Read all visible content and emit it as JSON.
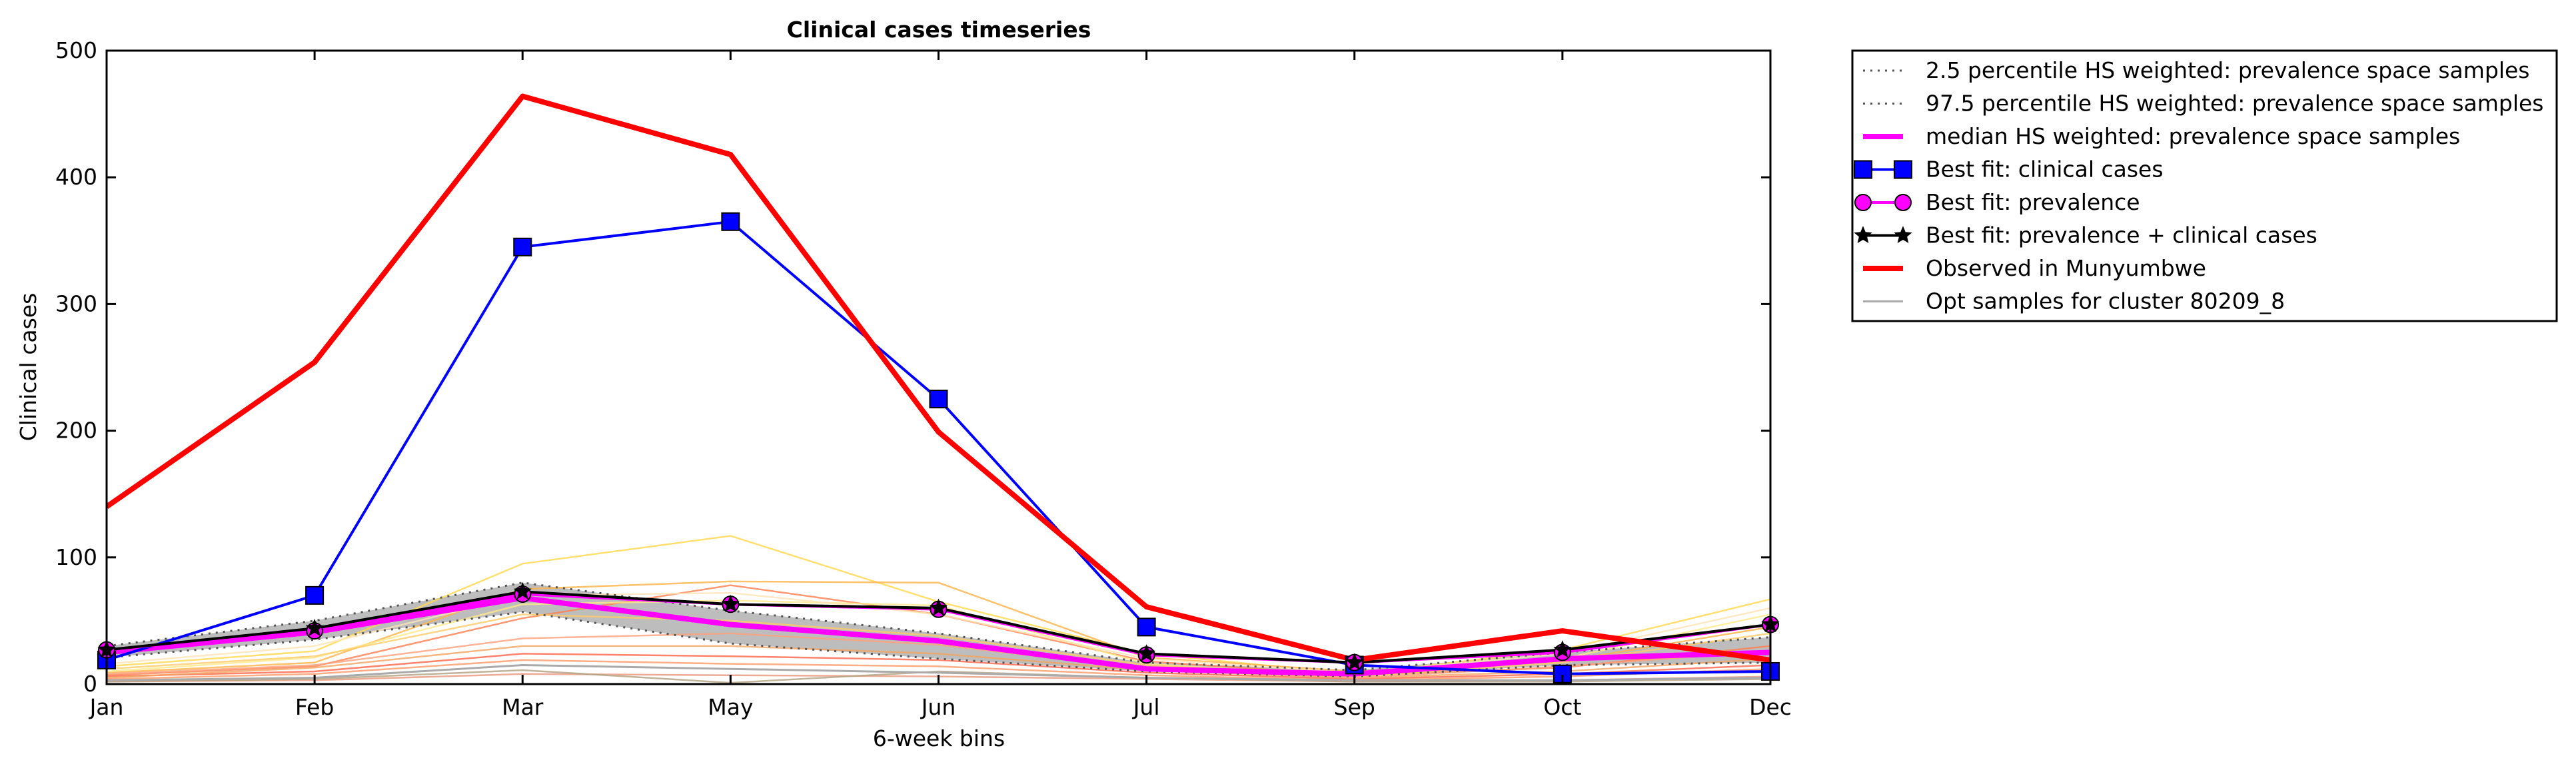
{
  "chart_data": {
    "type": "line",
    "title": "Clinical cases timeseries",
    "xlabel": "6-week bins",
    "ylabel": "Clinical cases",
    "categories": [
      "Jan",
      "Feb",
      "Mar",
      "May",
      "Jun",
      "Jul",
      "Sep",
      "Oct",
      "Dec"
    ],
    "ylim": [
      0,
      500
    ],
    "yticks": [
      0,
      100,
      200,
      300,
      400,
      500
    ],
    "grid": false,
    "legend_position": "outside-right",
    "series": [
      {
        "name": "2.5 percentile HS weighted: prevalence space samples",
        "style": "dotted",
        "color": "#555555",
        "values": [
          21,
          35,
          57,
          32,
          20,
          10,
          6,
          15,
          17
        ]
      },
      {
        "name": "97.5 percentile HS weighted: prevalence space samples",
        "style": "dotted",
        "color": "#555555",
        "values": [
          30,
          50,
          80,
          58,
          40,
          17,
          11,
          25,
          37
        ]
      },
      {
        "name": "median HS weighted: prevalence space samples",
        "style": "solid-thick",
        "color": "#ff00ff",
        "values": [
          25,
          41,
          68,
          47,
          34,
          12,
          8,
          20,
          25
        ]
      },
      {
        "name": "Best fit: clinical cases",
        "style": "line-square",
        "color": "#0000ff",
        "values": [
          19,
          70,
          345,
          365,
          225,
          45,
          15,
          8,
          10
        ]
      },
      {
        "name": "Best fit: prevalence",
        "style": "line-circle",
        "color": "#ff00ff",
        "values": [
          27,
          42,
          71,
          63,
          59,
          23,
          17,
          25,
          47
        ]
      },
      {
        "name": "Best fit: prevalence + clinical cases",
        "style": "line-star",
        "color": "#000000",
        "values": [
          27,
          44,
          73,
          63,
          60,
          24,
          17,
          27,
          47
        ]
      },
      {
        "name": "Observed in Munyumbwe",
        "style": "solid-thick",
        "color": "#ff0000",
        "values": [
          140,
          254,
          464,
          418,
          199,
          61,
          19,
          42,
          19
        ]
      },
      {
        "name": "Opt samples for cluster 80209_8",
        "style": "thin",
        "color": "#aaaaaa",
        "values": [
          3,
          5,
          15,
          12,
          9,
          5,
          3,
          3,
          5
        ]
      }
    ],
    "opt_samples": [
      {
        "color": "#ffd84d",
        "values": [
          14,
          26,
          95,
          117,
          65,
          24,
          8,
          27,
          67
        ]
      },
      {
        "color": "#ffb347",
        "values": [
          9,
          17,
          75,
          81,
          80,
          21,
          10,
          18,
          45
        ]
      },
      {
        "color": "#ff7f50",
        "values": [
          7,
          14,
          52,
          78,
          55,
          18,
          7,
          13,
          30
        ]
      },
      {
        "color": "#ff6347",
        "values": [
          6,
          10,
          24,
          22,
          19,
          9,
          4,
          8,
          15
        ]
      },
      {
        "color": "#ffe98a",
        "values": [
          10,
          21,
          63,
          66,
          62,
          16,
          6,
          20,
          55
        ]
      },
      {
        "color": "#f4a460",
        "values": [
          5,
          13,
          30,
          30,
          24,
          11,
          5,
          10,
          20
        ]
      },
      {
        "color": "#ff9966",
        "values": [
          4,
          8,
          19,
          16,
          14,
          7,
          3,
          6,
          12
        ]
      },
      {
        "color": "#ffcc66",
        "values": [
          12,
          22,
          55,
          50,
          38,
          15,
          6,
          17,
          40
        ]
      },
      {
        "color": "#e9967a",
        "values": [
          2,
          3,
          8,
          7,
          6,
          4,
          2,
          3,
          6
        ]
      },
      {
        "color": "#b0a080",
        "values": [
          2,
          4,
          11,
          1,
          10,
          5,
          2,
          2,
          4
        ]
      },
      {
        "color": "#ffe4b5",
        "values": [
          16,
          30,
          70,
          72,
          55,
          20,
          9,
          24,
          60
        ]
      },
      {
        "color": "#ffa07a",
        "values": [
          8,
          15,
          36,
          40,
          31,
          12,
          5,
          14,
          26
        ]
      }
    ]
  }
}
